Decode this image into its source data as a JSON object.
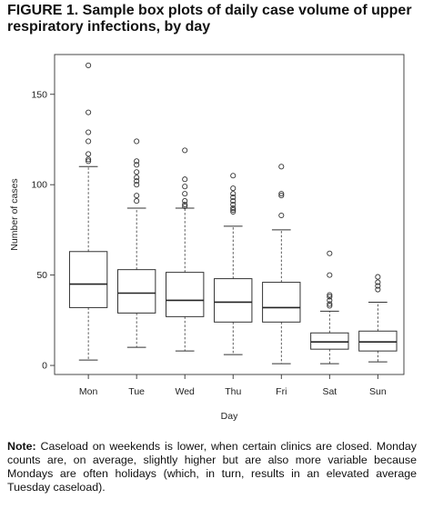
{
  "figure": {
    "title": "FIGURE 1. Sample box plots of daily case volume of upper respiratory infections, by day"
  },
  "note": {
    "label": "Note:",
    "text": "Caseload on weekends is lower, when certain clinics are closed. Monday counts are, on average, slightly higher but are also more variable because Mondays are often holidays (which, in turn, results in an elevated average Tuesday caseload)."
  },
  "chart_data": {
    "type": "box",
    "title": "FIGURE 1. Sample box plots of daily case volume of upper respiratory infections, by day",
    "xlabel": "Day",
    "ylabel": "Number of cases",
    "ylim": [
      -5,
      172
    ],
    "yticks": [
      0,
      50,
      100,
      150
    ],
    "grid": false,
    "categories": [
      "Mon",
      "Tue",
      "Wed",
      "Thu",
      "Fri",
      "Sat",
      "Sun"
    ],
    "boxes": [
      {
        "category": "Mon",
        "min": 3,
        "q1": 32,
        "median": 45,
        "q3": 63,
        "max": 110,
        "outliers": [
          166,
          140,
          129,
          124,
          117,
          114,
          113
        ]
      },
      {
        "category": "Tue",
        "min": 10,
        "q1": 29,
        "median": 40,
        "q3": 53,
        "max": 87,
        "outliers": [
          124,
          113,
          111,
          107,
          104,
          102,
          100,
          94,
          91
        ]
      },
      {
        "category": "Wed",
        "min": 8,
        "q1": 27,
        "median": 36,
        "q3": 51.5,
        "max": 87,
        "outliers": [
          119,
          103,
          99,
          95,
          91,
          89,
          88
        ]
      },
      {
        "category": "Thu",
        "min": 6,
        "q1": 24,
        "median": 35,
        "q3": 48,
        "max": 77,
        "outliers": [
          105,
          98,
          95,
          93,
          91,
          89,
          87,
          86,
          85
        ]
      },
      {
        "category": "Fri",
        "min": 1,
        "q1": 24,
        "median": 32,
        "q3": 46,
        "max": 75,
        "outliers": [
          110,
          95,
          94,
          83
        ]
      },
      {
        "category": "Sat",
        "min": 1,
        "q1": 9,
        "median": 13,
        "q3": 18,
        "max": 30,
        "outliers": [
          62,
          50,
          39,
          38,
          36,
          34,
          33
        ]
      },
      {
        "category": "Sun",
        "min": 2,
        "q1": 8,
        "median": 13,
        "q3": 19,
        "max": 35,
        "outliers": [
          49,
          46,
          44,
          42
        ]
      }
    ]
  }
}
